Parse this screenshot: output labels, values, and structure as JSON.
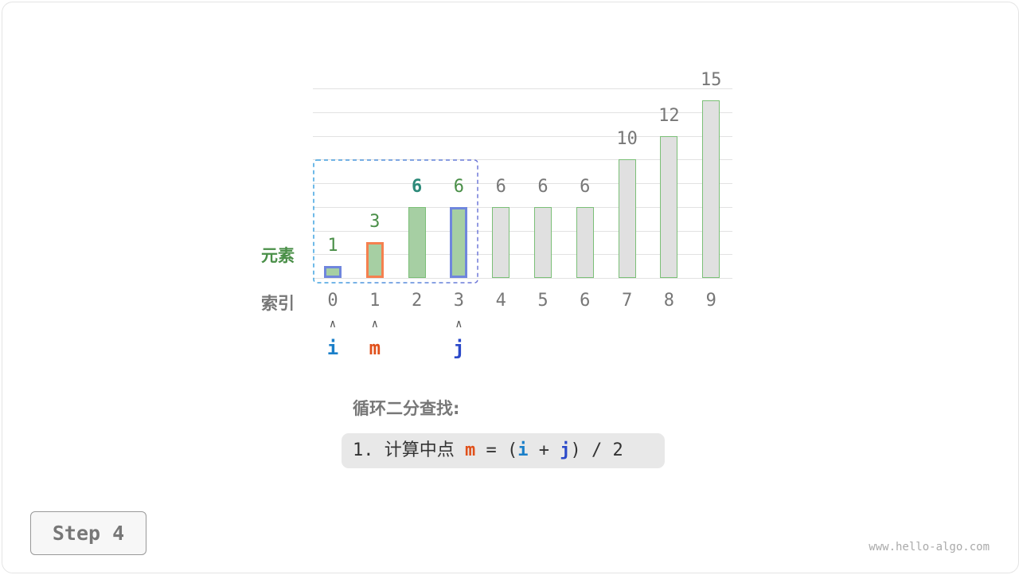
{
  "chart_data": {
    "type": "bar",
    "categories": [
      "0",
      "1",
      "2",
      "3",
      "4",
      "5",
      "6",
      "7",
      "8",
      "9"
    ],
    "values": [
      1,
      3,
      6,
      6,
      6,
      6,
      6,
      10,
      12,
      15
    ],
    "ylim": [
      0,
      16
    ],
    "grid": true,
    "row_labels": {
      "values": "元素",
      "index": "索引"
    },
    "search_range": [
      0,
      3
    ],
    "highlighted": {
      "2": "bold"
    }
  },
  "pointers": [
    {
      "name": "i",
      "index": 0,
      "color": "#1a7fc9"
    },
    {
      "name": "m",
      "index": 1,
      "color": "#e0501a"
    },
    {
      "name": "j",
      "index": 3,
      "color": "#2b49c9"
    }
  ],
  "colors": {
    "active_fill": "#a6cfa3",
    "inactive_fill": "#e0e0e0",
    "bar_border": "#7bbf77",
    "i_border": "#6f86dd",
    "m_border": "#f5804f",
    "j_border": "#6f86dd",
    "value_green": "#4a8f48",
    "value_teal": "#2d8a7a"
  },
  "caption": {
    "title": "循环二分查找:",
    "formula_prefix": "1. 计算中点 ",
    "m": "m",
    "eq": " = (",
    "i": "i",
    "plus": " + ",
    "j": "j",
    "suffix": ") / 2"
  },
  "step_button": "Step 4",
  "watermark": "www.hello-algo.com",
  "arrow_glyph": "∧"
}
